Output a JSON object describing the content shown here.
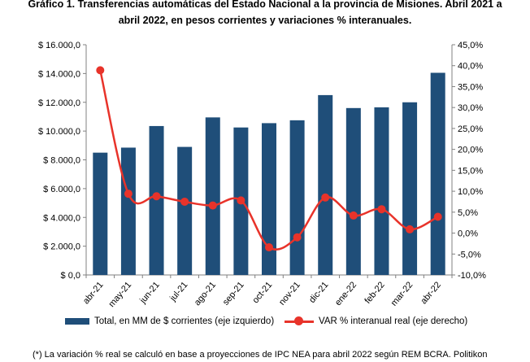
{
  "title_line1": "Gráfico 1. Transferencias automáticas del Estado Nacional a la provincia de Misiones. Abril 2021 a",
  "title_line2": "abril 2022, en pesos corrientes y variaciones % interanuales.",
  "colors": {
    "bar": "#1f4e79",
    "line": "#e8332a",
    "axis": "#808080"
  },
  "legend": {
    "bar_label": "Total, en MM de $ corrientes (eje izquierdo)",
    "line_label": "VAR % interanual real (eje derecho)"
  },
  "footnote": "(*) La variación % real se calculó en base a proyecciones de IPC NEA para abril 2022 según REM BCRA. Politikon",
  "chart_data": {
    "type": "bar",
    "categories": [
      "abr-21",
      "may-21",
      "jun-21",
      "jul-21",
      "ago-21",
      "sep-21",
      "oct-21",
      "nov-21",
      "dic-21",
      "ene-22",
      "feb-22",
      "mar-22",
      "abr-22"
    ],
    "series": [
      {
        "name": "Total, en MM de $ corrientes (eje izquierdo)",
        "type": "bar",
        "axis": "left",
        "values": [
          8500,
          8850,
          10350,
          8900,
          10950,
          10250,
          10550,
          10750,
          12500,
          11600,
          11650,
          12000,
          14050
        ]
      },
      {
        "name": "VAR % interanual real (eje derecho)",
        "type": "line",
        "axis": "right",
        "values": [
          38.9,
          9.4,
          8.8,
          7.5,
          6.6,
          7.8,
          -3.4,
          -1.0,
          8.5,
          4.2,
          5.7,
          0.9,
          3.9
        ]
      }
    ],
    "y_left": {
      "ylim": [
        0,
        16000
      ],
      "ticks": [
        "$ 0,0",
        "$ 2.000,0",
        "$ 4.000,0",
        "$ 6.000,0",
        "$ 8.000,0",
        "$ 10.000,0",
        "$ 12.000,0",
        "$ 14.000,0",
        "$ 16.000,0"
      ]
    },
    "y_right": {
      "ylim": [
        -10,
        45
      ],
      "ticks": [
        "-10,0%",
        "-5,0%",
        "0,0%",
        "5,0%",
        "10,0%",
        "15,0%",
        "20,0%",
        "25,0%",
        "30,0%",
        "35,0%",
        "40,0%",
        "45,0%"
      ]
    },
    "grid": false,
    "legend_position": "bottom"
  }
}
